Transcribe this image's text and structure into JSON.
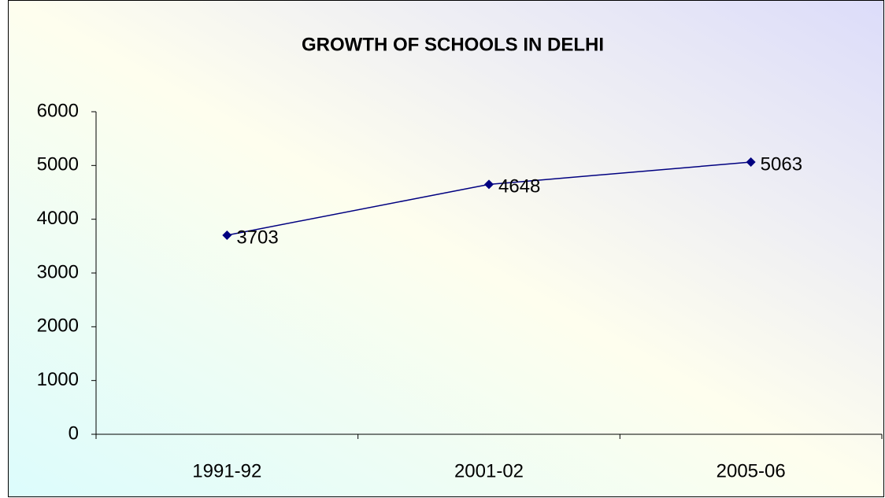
{
  "chart_data": {
    "type": "line",
    "title": "GROWTH OF SCHOOLS IN DELHI",
    "categories": [
      "1991-92",
      "2001-02",
      "2005-06"
    ],
    "values": [
      3703,
      4648,
      5063
    ],
    "color": "#000080",
    "ylim": [
      0,
      6000
    ],
    "yticks": [
      0,
      1000,
      2000,
      3000,
      4000,
      5000,
      6000
    ],
    "grid": false,
    "data_labels": true
  }
}
